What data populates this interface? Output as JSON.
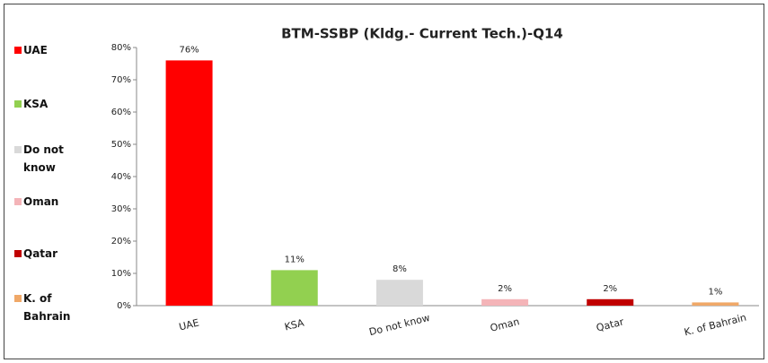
{
  "chart_data": {
    "type": "bar",
    "title": "BTM-SSBP (Kldg.- Current Tech.)-Q14",
    "categories": [
      "UAE",
      "KSA",
      "Do not know",
      "Oman",
      "Qatar",
      "K. of Bahrain"
    ],
    "values": [
      76,
      11,
      8,
      2,
      2,
      1
    ],
    "value_labels": [
      "76%",
      "11%",
      "8%",
      "2%",
      "2%",
      "1%"
    ],
    "colors": [
      "#ff0000",
      "#92d050",
      "#d9d9d9",
      "#f4b4b8",
      "#c00000",
      "#f0a868"
    ],
    "ylim": [
      0,
      80
    ],
    "yticks": [
      {
        "value": 0,
        "label": "0%"
      },
      {
        "value": 10,
        "label": "10%"
      },
      {
        "value": 20,
        "label": "20%"
      },
      {
        "value": 30,
        "label": "30%"
      },
      {
        "value": 40,
        "label": "40%"
      },
      {
        "value": 50,
        "label": "50%"
      },
      {
        "value": 60,
        "label": "60%"
      },
      {
        "value": 70,
        "label": "70%"
      },
      {
        "value": 80,
        "label": "80%"
      }
    ],
    "grid": false,
    "legend": "left"
  }
}
